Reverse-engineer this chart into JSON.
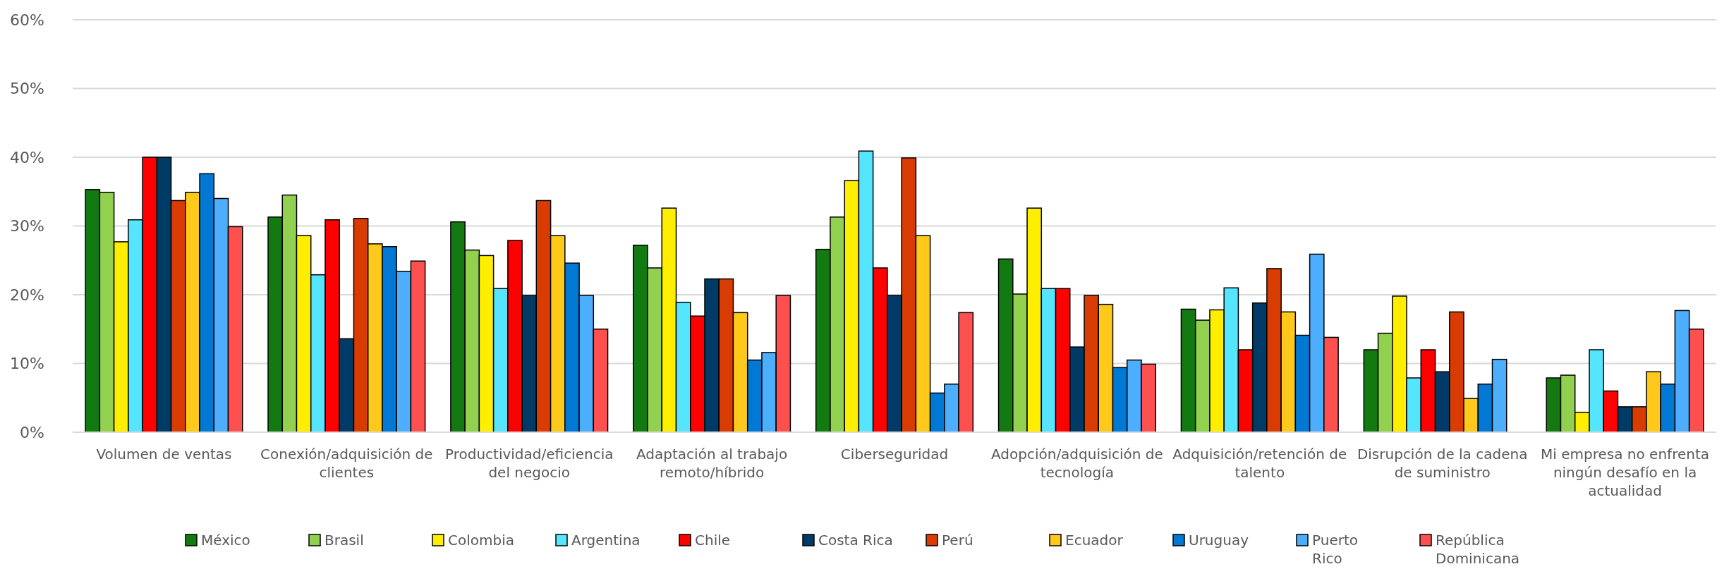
{
  "chart_data": {
    "type": "bar",
    "categories": [
      "Volumen de ventas",
      "Conexión/adquisición de clientes",
      "Productividad/eficiencia del negocio",
      "Adaptación al trabajo remoto/híbrido",
      "Ciberseguridad",
      "Adopción/adquisición de tecnología",
      "Adquisición/retención de talento",
      "Disrupción de la cadena de suministro",
      "Mi empresa no enfrenta ningún desafío en la actualidad"
    ],
    "series": [
      {
        "name": "México",
        "color": "#127a10",
        "values": [
          35.3,
          31.3,
          30.6,
          27.2,
          26.6,
          25.2,
          17.9,
          12.0,
          7.9
        ]
      },
      {
        "name": "Brasil",
        "color": "#92d050",
        "values": [
          34.9,
          34.5,
          26.5,
          23.9,
          31.3,
          20.1,
          16.3,
          14.4,
          8.3
        ]
      },
      {
        "name": "Colombia",
        "color": "#ffee00",
        "values": [
          27.7,
          28.6,
          25.7,
          32.6,
          36.6,
          32.6,
          17.8,
          19.8,
          2.9
        ]
      },
      {
        "name": "Argentina",
        "color": "#55e5ff",
        "values": [
          30.9,
          22.9,
          20.9,
          18.9,
          40.9,
          20.9,
          21.0,
          7.9,
          12.0
        ]
      },
      {
        "name": "Chile",
        "color": "#ff0000",
        "values": [
          40.0,
          30.9,
          27.9,
          16.9,
          23.9,
          20.9,
          12.0,
          12.0,
          6.0
        ]
      },
      {
        "name": "Costa Rica",
        "color": "#003a66",
        "values": [
          40.0,
          13.6,
          19.9,
          22.3,
          19.9,
          12.4,
          18.8,
          8.8,
          3.7
        ]
      },
      {
        "name": "Perú",
        "color": "#d83c03",
        "values": [
          33.7,
          31.1,
          33.7,
          22.3,
          39.9,
          19.9,
          23.8,
          17.5,
          3.7
        ]
      },
      {
        "name": "Ecuador",
        "color": "#ffc91b",
        "values": [
          34.9,
          27.4,
          28.6,
          17.4,
          28.6,
          18.6,
          17.5,
          4.9,
          8.8
        ]
      },
      {
        "name": "Uruguay",
        "color": "#0078d4",
        "values": [
          37.6,
          27.0,
          24.6,
          10.5,
          5.7,
          9.4,
          14.1,
          7.0,
          7.0
        ]
      },
      {
        "name": "Puerto Rico",
        "color": "#4eaefe",
        "values": [
          34.0,
          23.4,
          19.9,
          11.6,
          7.0,
          10.5,
          25.9,
          10.6,
          17.7
        ]
      },
      {
        "name": "República Dominicana",
        "color": "#ff5050",
        "values": [
          29.9,
          24.9,
          15.0,
          19.9,
          17.4,
          9.9,
          13.8,
          null,
          15.0
        ]
      }
    ],
    "ylim": [
      0,
      60
    ],
    "yticks": [
      {
        "value": 0,
        "label": "0%"
      },
      {
        "value": 10,
        "label": "10%"
      },
      {
        "value": 20,
        "label": "20%"
      },
      {
        "value": 30,
        "label": "30%"
      },
      {
        "value": 40,
        "label": "40%"
      },
      {
        "value": 50,
        "label": "50%"
      },
      {
        "value": 60,
        "label": "60%"
      }
    ],
    "grid": "y",
    "legend": "bottom"
  }
}
